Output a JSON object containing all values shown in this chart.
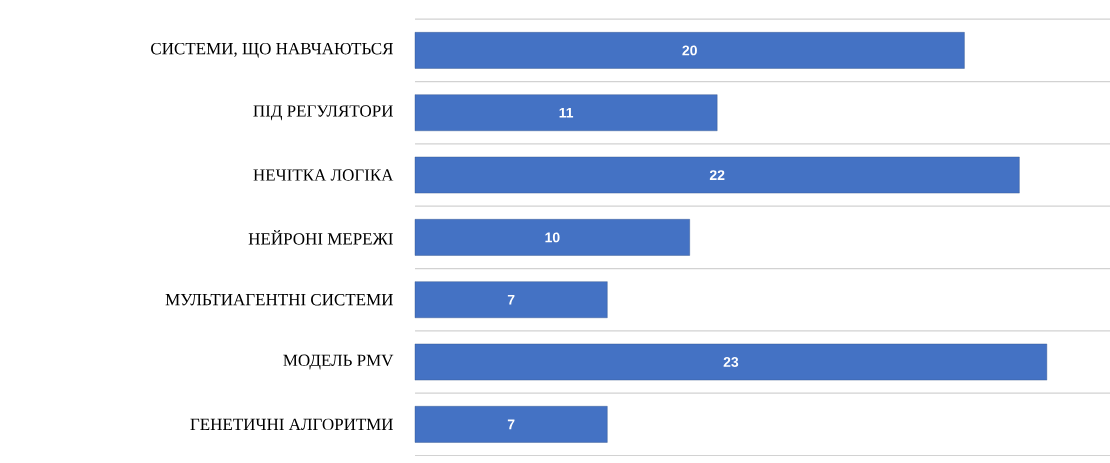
{
  "chart_data": {
    "type": "bar",
    "orientation": "horizontal",
    "categories": [
      "СИСТЕМИ, ЩО НАВЧАЮТЬСЯ",
      "ПІД РЕГУЛЯТОРИ",
      "НЕЧІТКА ЛОГІКА",
      "НЕЙРОНІ МЕРЕЖІ",
      "МУЛЬТИАГЕНТНІ СИСТЕМИ",
      "МОДЕЛЬ PMV",
      "ГЕНЕТИЧНІ АЛГОРИТМИ"
    ],
    "values": [
      20,
      11,
      22,
      10,
      7,
      23,
      7
    ],
    "color": "#4472c4",
    "data_labels": true,
    "grid": "y"
  }
}
